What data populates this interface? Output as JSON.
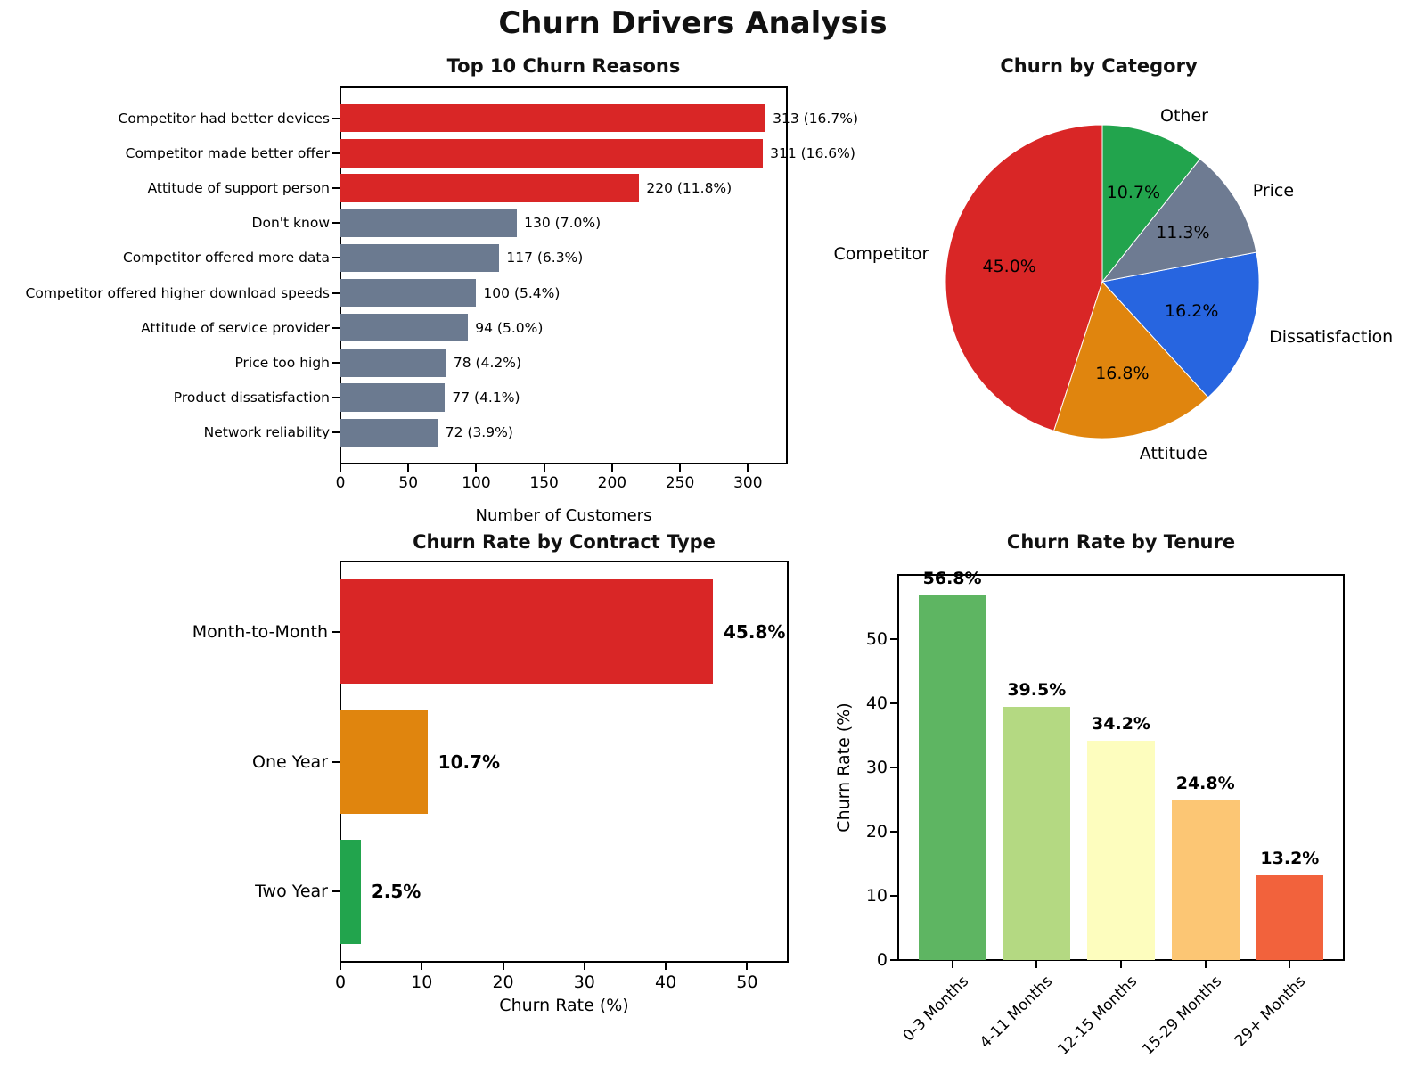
{
  "page_title": "Churn Drivers Analysis",
  "colors": {
    "highlight_red": "#d92626",
    "neutral_slate": "#6b7a90",
    "orange": "#e0850e",
    "green": "#22a44d",
    "blue": "#2765e0",
    "pie_gray": "#6e7b92"
  },
  "chart_data": [
    {
      "id": "reasons",
      "type": "bar",
      "orientation": "horizontal",
      "title": "Top 10 Churn Reasons",
      "xlabel": "Number of Customers",
      "xlim": [
        0,
        328.65
      ],
      "xticks": [
        0,
        50,
        100,
        150,
        200,
        250,
        300
      ],
      "grid": false,
      "categories": [
        "Competitor had better devices",
        "Competitor made better offer",
        "Attitude of support person",
        "Don't know",
        "Competitor offered more data",
        "Competitor offered higher download speeds",
        "Attitude of service provider",
        "Price too high",
        "Product dissatisfaction",
        "Network reliability"
      ],
      "values": [
        313,
        311,
        220,
        130,
        117,
        100,
        94,
        78,
        77,
        72
      ],
      "bar_labels": [
        "313 (16.7%)",
        "311 (16.6%)",
        "220 (11.8%)",
        "130 (7.0%)",
        "117 (6.3%)",
        "100 (5.4%)",
        "94 (5.0%)",
        "78 (4.2%)",
        "77 (4.1%)",
        "72 (3.9%)"
      ],
      "bar_colors": [
        "#d92626",
        "#d92626",
        "#d92626",
        "#6b7a90",
        "#6b7a90",
        "#6b7a90",
        "#6b7a90",
        "#6b7a90",
        "#6b7a90",
        "#6b7a90"
      ]
    },
    {
      "id": "pie",
      "type": "pie",
      "title": "Churn by Category",
      "start_angle": 90,
      "counterclock": true,
      "label_distance": 1.12,
      "pct_distance": 0.6,
      "slices": [
        {
          "label": "Competitor",
          "value": 45.0,
          "pct_label": "45.0%",
          "color": "#d92626"
        },
        {
          "label": "Attitude",
          "value": 16.8,
          "pct_label": "16.8%",
          "color": "#e0850e"
        },
        {
          "label": "Dissatisfaction",
          "value": 16.2,
          "pct_label": "16.2%",
          "color": "#2765e0"
        },
        {
          "label": "Price",
          "value": 11.3,
          "pct_label": "11.3%",
          "color": "#6e7b92"
        },
        {
          "label": "Other",
          "value": 10.7,
          "pct_label": "10.7%",
          "color": "#22a44d"
        }
      ]
    },
    {
      "id": "contract",
      "type": "bar",
      "orientation": "horizontal",
      "title": "Churn Rate by Contract Type",
      "xlabel": "Churn Rate (%)",
      "xlim": [
        0,
        55
      ],
      "xticks": [
        0,
        10,
        20,
        30,
        40,
        50
      ],
      "grid": false,
      "categories": [
        "Month-to-Month",
        "One Year",
        "Two Year"
      ],
      "values": [
        45.8,
        10.7,
        2.5
      ],
      "bar_labels": [
        "45.8%",
        "10.7%",
        "2.5%"
      ],
      "bar_colors": [
        "#d92626",
        "#e0850e",
        "#22a44d"
      ]
    },
    {
      "id": "tenure",
      "type": "bar",
      "orientation": "vertical",
      "title": "Churn Rate by Tenure",
      "ylabel": "Churn Rate (%)",
      "ylim": [
        0,
        60
      ],
      "yticks": [
        0,
        10,
        20,
        30,
        40,
        50
      ],
      "grid": false,
      "categories": [
        "0-3 Months",
        "4-11 Months",
        "12-15 Months",
        "15-29 Months",
        "29+ Months"
      ],
      "values": [
        56.8,
        39.5,
        34.2,
        24.8,
        13.2
      ],
      "bar_labels": [
        "56.8%",
        "39.5%",
        "34.2%",
        "24.8%",
        "13.2%"
      ],
      "bar_colors": [
        "#5eb562",
        "#b4d982",
        "#fdfdbe",
        "#fcc674",
        "#f2623c"
      ]
    }
  ]
}
